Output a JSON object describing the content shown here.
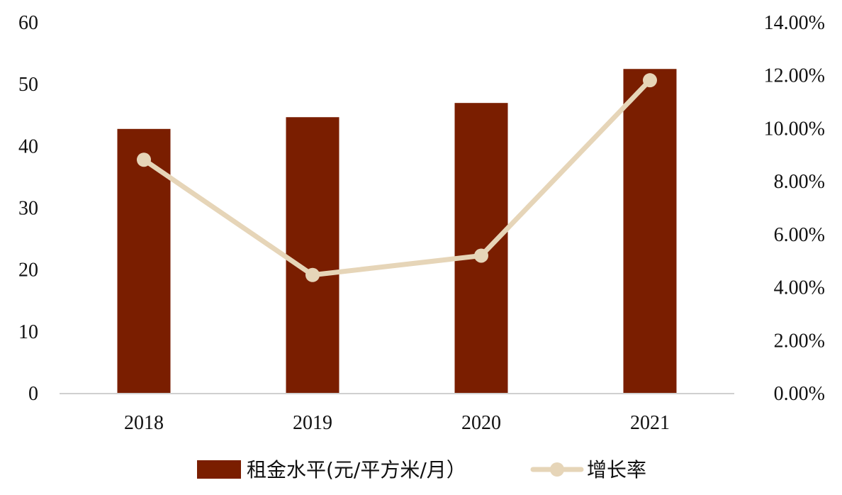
{
  "chart_data": {
    "type": "bar",
    "categories": [
      "2018",
      "2019",
      "2020",
      "2021"
    ],
    "series": [
      {
        "name": "租金水平(元/平方米/月）",
        "type": "bar",
        "axis": "left",
        "values": [
          42.7,
          44.6,
          46.9,
          52.4
        ]
      },
      {
        "name": "增长率",
        "type": "line",
        "axis": "right",
        "values": [
          0.088,
          0.0445,
          0.0518,
          0.118
        ]
      }
    ],
    "y_left": {
      "min": 0,
      "max": 60,
      "ticks": [
        "0",
        "10",
        "20",
        "30",
        "40",
        "50",
        "60"
      ]
    },
    "y_right": {
      "min": 0,
      "max": 0.14,
      "ticks": [
        "0.00%",
        "2.00%",
        "4.00%",
        "6.00%",
        "8.00%",
        "10.00%",
        "12.00%",
        "14.00%"
      ]
    },
    "grid": false,
    "legend_position": "bottom",
    "colors": {
      "bar": "#7a1e00",
      "line": "#e6d5b8",
      "axis": "#d0d0d0"
    }
  }
}
